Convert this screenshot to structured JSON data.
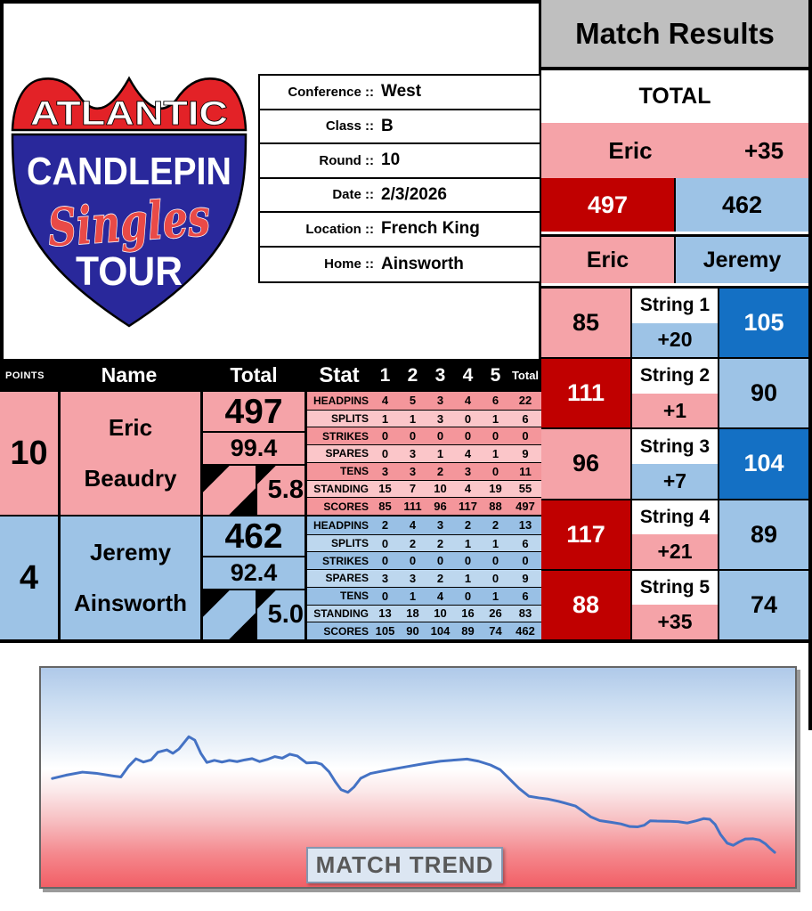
{
  "header": {
    "title": "Match Results"
  },
  "logo": {
    "line1": "ATLANTIC",
    "line2": "CANDLEPIN",
    "line3": "Singles",
    "line4": "TOUR"
  },
  "match_info": {
    "rows": [
      {
        "label": "Conference ::",
        "value": "West"
      },
      {
        "label": "Class ::",
        "value": "B"
      },
      {
        "label": "Round ::",
        "value": "10"
      },
      {
        "label": "Date ::",
        "value": "2/3/2026"
      },
      {
        "label": "Location ::",
        "value": "French King"
      },
      {
        "label": "Home ::",
        "value": "Ainsworth"
      }
    ]
  },
  "results": {
    "total_label": "TOTAL",
    "leader": {
      "name": "Eric",
      "margin": "+35"
    },
    "totals": {
      "p1": "497",
      "p2": "462"
    },
    "names": {
      "p1": "Eric",
      "p2": "Jeremy"
    },
    "strings": [
      {
        "label": "String 1",
        "p1": "85",
        "diff": "+20",
        "p2": "105"
      },
      {
        "label": "String 2",
        "p1": "111",
        "diff": "+1",
        "p2": "90"
      },
      {
        "label": "String 3",
        "p1": "96",
        "diff": "+7",
        "p2": "104"
      },
      {
        "label": "String 4",
        "p1": "117",
        "diff": "+21",
        "p2": "89"
      },
      {
        "label": "String 5",
        "p1": "88",
        "diff": "+35",
        "p2": "74"
      }
    ]
  },
  "table": {
    "headers": {
      "points": "POINTS",
      "name": "Name",
      "total": "Total",
      "stat": "Stat",
      "g1": "1",
      "g2": "2",
      "g3": "3",
      "g4": "4",
      "g5": "5",
      "total_col": "Total"
    },
    "players": [
      {
        "points": "10",
        "first_name": "Eric",
        "last_name": "Beaudry",
        "total": "497",
        "average": "99.4",
        "fill_avg": "5.8",
        "stats": [
          {
            "label": "HEADPINS",
            "v": [
              "4",
              "5",
              "3",
              "4",
              "6",
              "22"
            ]
          },
          {
            "label": "SPLITS",
            "v": [
              "1",
              "1",
              "3",
              "0",
              "1",
              "6"
            ]
          },
          {
            "label": "STRIKES",
            "v": [
              "0",
              "0",
              "0",
              "0",
              "0",
              "0"
            ]
          },
          {
            "label": "SPARES",
            "v": [
              "0",
              "3",
              "1",
              "4",
              "1",
              "9"
            ]
          },
          {
            "label": "TENS",
            "v": [
              "3",
              "3",
              "2",
              "3",
              "0",
              "11"
            ]
          },
          {
            "label": "STANDING",
            "v": [
              "15",
              "7",
              "10",
              "4",
              "19",
              "55"
            ]
          },
          {
            "label": "SCORES",
            "v": [
              "85",
              "111",
              "96",
              "117",
              "88",
              "497"
            ]
          }
        ]
      },
      {
        "points": "4",
        "first_name": "Jeremy",
        "last_name": "Ainsworth",
        "total": "462",
        "average": "92.4",
        "fill_avg": "5.0",
        "stats": [
          {
            "label": "HEADPINS",
            "v": [
              "2",
              "4",
              "3",
              "2",
              "2",
              "13"
            ]
          },
          {
            "label": "SPLITS",
            "v": [
              "0",
              "2",
              "2",
              "1",
              "1",
              "6"
            ]
          },
          {
            "label": "STRIKES",
            "v": [
              "0",
              "0",
              "0",
              "0",
              "0",
              "0"
            ]
          },
          {
            "label": "SPARES",
            "v": [
              "3",
              "3",
              "2",
              "1",
              "0",
              "9"
            ]
          },
          {
            "label": "TENS",
            "v": [
              "0",
              "1",
              "4",
              "0",
              "1",
              "6"
            ]
          },
          {
            "label": "STANDING",
            "v": [
              "13",
              "18",
              "10",
              "16",
              "26",
              "83"
            ]
          },
          {
            "label": "SCORES",
            "v": [
              "105",
              "90",
              "104",
              "89",
              "74",
              "462"
            ]
          }
        ]
      }
    ]
  },
  "trend": {
    "label": "MATCH TREND"
  },
  "chart_data": {
    "type": "line",
    "title": "MATCH TREND",
    "legend": [],
    "axes_visible": false,
    "line_color": "#4472C4",
    "background_gradient": [
      "#AFC9E9",
      "#FFFFFF",
      "#F25F66"
    ],
    "points_pct": [
      [
        1.5,
        50.5
      ],
      [
        3.3,
        49
      ],
      [
        5.5,
        47.6
      ],
      [
        7.3,
        48.1
      ],
      [
        9.3,
        49.2
      ],
      [
        10.6,
        49.8
      ],
      [
        11.6,
        45
      ],
      [
        12.6,
        41.5
      ],
      [
        13.6,
        43
      ],
      [
        14.6,
        42
      ],
      [
        15.5,
        38.5
      ],
      [
        16.7,
        37.4
      ],
      [
        17.5,
        39
      ],
      [
        18.3,
        37
      ],
      [
        19.6,
        31.4
      ],
      [
        20.4,
        33
      ],
      [
        21.2,
        39
      ],
      [
        22,
        43.2
      ],
      [
        23,
        42.2
      ],
      [
        24,
        43
      ],
      [
        25,
        42.2
      ],
      [
        26,
        42.8
      ],
      [
        27,
        42
      ],
      [
        28,
        41.4
      ],
      [
        29,
        42.8
      ],
      [
        30,
        41.8
      ],
      [
        31,
        40.5
      ],
      [
        32,
        41.2
      ],
      [
        33,
        39.4
      ],
      [
        34,
        40.2
      ],
      [
        35.2,
        43.4
      ],
      [
        36.4,
        43.2
      ],
      [
        37.2,
        44
      ],
      [
        38.2,
        47.4
      ],
      [
        39,
        51.8
      ],
      [
        39.8,
        55.6
      ],
      [
        40.7,
        56.8
      ],
      [
        41.5,
        54.4
      ],
      [
        42.4,
        50.4
      ],
      [
        43.7,
        48.2
      ],
      [
        45.1,
        47.2
      ],
      [
        47,
        46
      ],
      [
        49,
        44.8
      ],
      [
        51,
        43.6
      ],
      [
        53,
        42.6
      ],
      [
        55,
        42
      ],
      [
        56.5,
        41.6
      ],
      [
        58,
        42.6
      ],
      [
        59.6,
        44.3
      ],
      [
        60.9,
        46.5
      ],
      [
        62.1,
        50.6
      ],
      [
        63.4,
        55
      ],
      [
        64.7,
        58.6
      ],
      [
        66,
        59.3
      ],
      [
        67.3,
        59.9
      ],
      [
        68.6,
        60.9
      ],
      [
        69.8,
        62
      ],
      [
        70.9,
        63.1
      ],
      [
        71.9,
        65.5
      ],
      [
        72.9,
        68
      ],
      [
        74.1,
        69.7
      ],
      [
        75.6,
        70.5
      ],
      [
        76.9,
        71.2
      ],
      [
        78.1,
        72.4
      ],
      [
        79.1,
        72.6
      ],
      [
        80,
        71.8
      ],
      [
        80.8,
        69.8
      ],
      [
        81.7,
        69.9
      ],
      [
        83.1,
        70
      ],
      [
        84.5,
        70.2
      ],
      [
        85.7,
        70.8
      ],
      [
        86.9,
        69.8
      ],
      [
        87.9,
        68.8
      ],
      [
        88.7,
        69.1
      ],
      [
        89.4,
        71.5
      ],
      [
        90.1,
        76
      ],
      [
        91,
        80
      ],
      [
        91.8,
        81
      ],
      [
        92.6,
        79.4
      ],
      [
        93.4,
        78.1
      ],
      [
        94.4,
        78
      ],
      [
        95.3,
        78.6
      ],
      [
        96.1,
        80.4
      ],
      [
        96.7,
        82.4
      ],
      [
        97.3,
        84.2
      ]
    ]
  },
  "colors": {
    "dark_red": "#C00000",
    "pink": "#F5A3A8",
    "pink_row_dark": "#F4969B",
    "pink_row_light": "#FBC6C9",
    "light_blue": "#9DC3E6",
    "blue_row_light": "#BDD7EE",
    "strong_blue": "#1470C4",
    "header_gray": "#BFBFBF",
    "logo_red": "#E32227",
    "logo_blue": "#29289B",
    "trend_line": "#4472C4"
  }
}
